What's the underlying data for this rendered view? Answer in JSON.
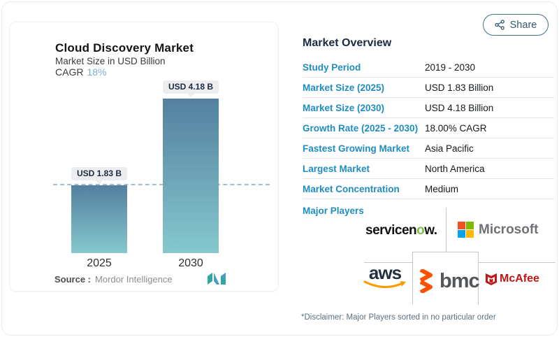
{
  "share": {
    "label": "Share"
  },
  "chart_card": {
    "title": "Cloud Discovery Market",
    "subtitle": "Market Size in USD Billion",
    "cagr_label": "CAGR",
    "cagr_value": "18%",
    "source_label": "Source :",
    "source_value": "Mordor Intelligence"
  },
  "chart_data": {
    "type": "bar",
    "title": "Cloud Discovery Market",
    "ylabel": "Market Size in USD Billion",
    "categories": [
      "2025",
      "2030"
    ],
    "values": [
      1.83,
      4.18
    ],
    "value_labels": [
      "USD 1.83 B",
      "USD 4.18 B"
    ],
    "ylim": [
      0,
      4.18
    ],
    "reference_line": 1.83,
    "grid": false,
    "bar_gradient_top": "#53809f",
    "bar_gradient_bottom": "#86c8ce",
    "cagr": "18%"
  },
  "overview": {
    "title": "Market Overview",
    "rows": [
      {
        "label": "Study Period",
        "value": "2019 - 2030"
      },
      {
        "label": "Market Size (2025)",
        "value": "USD 1.83 Billion"
      },
      {
        "label": "Market Size (2030)",
        "value": "USD 4.18 Billion"
      },
      {
        "label": "Growth Rate (2025 - 2030)",
        "value": "18.00% CAGR"
      },
      {
        "label": "Fastest Growing Market",
        "value": "Asia Pacific"
      },
      {
        "label": "Largest Market",
        "value": "North America"
      },
      {
        "label": "Market Concentration",
        "value": "Medium"
      }
    ],
    "major_players_label": "Major Players",
    "disclaimer": "*Disclaimer: Major Players sorted in no particular order"
  },
  "players": {
    "servicenow_pre": "servicen",
    "servicenow_o": "o",
    "servicenow_post": "w.",
    "microsoft": "Microsoft",
    "aws": "aws",
    "bmc": "bmc",
    "mcafee": "McAfee"
  },
  "colors": {
    "accent_blue": "#1f8cc2",
    "dark_navy": "#1b2a44",
    "cagr_blue": "#79afd4",
    "bar_top": "#53809f",
    "bar_bottom": "#86c8ce",
    "ms_red": "#f25022",
    "ms_green": "#7fba00",
    "ms_blue": "#00a4ef",
    "ms_yellow": "#ffb900",
    "aws_orange": "#ff9900",
    "bmc_orange": "#fe5000",
    "mcafee_red": "#c01818",
    "servicenow_green": "#7cc142"
  }
}
